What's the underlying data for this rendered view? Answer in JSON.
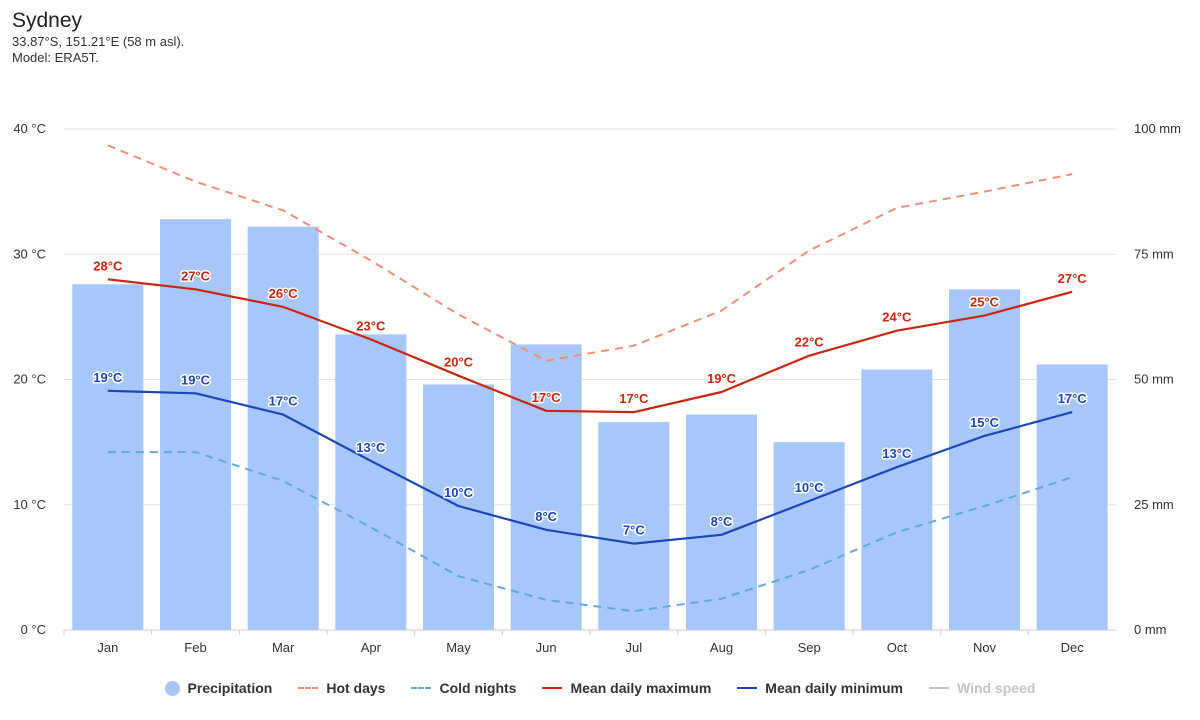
{
  "header": {
    "title": "Sydney",
    "coords": "33.87°S, 151.21°E (58 m asl).",
    "model": "Model: ERA5T."
  },
  "colors": {
    "precipitation": "#a7c6f9",
    "hot_days": "#f08e78",
    "cold_nights": "#65a7dc",
    "mean_max": "#c9260f",
    "mean_min": "#1d47b4",
    "wind_speed": "#a9a9a9",
    "grid": "#e3e3e3"
  },
  "chart_data": {
    "type": "bar+line",
    "categories": [
      "Jan",
      "Feb",
      "Mar",
      "Apr",
      "May",
      "Jun",
      "Jul",
      "Aug",
      "Sep",
      "Oct",
      "Nov",
      "Dec"
    ],
    "y_left": {
      "unit": "°C",
      "ylim": [
        0,
        40
      ],
      "ticks": [
        "0 °C",
        "10 °C",
        "20 °C",
        "30 °C",
        "40 °C"
      ]
    },
    "y_right": {
      "unit": "mm",
      "ylim": [
        0,
        100
      ],
      "ticks": [
        "0 mm",
        "25 mm",
        "50 mm",
        "75 mm",
        "100 mm"
      ]
    },
    "grid": true,
    "legend_position": "bottom-center",
    "series": [
      {
        "name": "Precipitation",
        "kind": "bar",
        "axis": "right",
        "values": [
          69,
          82,
          80.5,
          59,
          49,
          57,
          41.5,
          43,
          37.5,
          52,
          68,
          53
        ]
      },
      {
        "name": "Hot days",
        "kind": "dashed-line",
        "axis": "left",
        "values": [
          38.7,
          35.8,
          33.5,
          29.5,
          25.2,
          21.5,
          22.7,
          25.5,
          30.3,
          33.7,
          35.0,
          36.4
        ]
      },
      {
        "name": "Cold nights",
        "kind": "dashed-line",
        "axis": "left",
        "values": [
          14.2,
          14.2,
          11.9,
          8.2,
          4.3,
          2.4,
          1.5,
          2.5,
          4.8,
          7.8,
          9.9,
          12.2
        ]
      },
      {
        "name": "Mean daily maximum",
        "kind": "line",
        "axis": "left",
        "values": [
          28.0,
          27.2,
          25.8,
          23.2,
          20.3,
          17.5,
          17.4,
          19.0,
          21.9,
          23.9,
          25.1,
          27.0
        ],
        "labels": [
          "28°C",
          "27°C",
          "26°C",
          "23°C",
          "20°C",
          "17°C",
          "17°C",
          "19°C",
          "22°C",
          "24°C",
          "25°C",
          "27°C"
        ]
      },
      {
        "name": "Mean daily minimum",
        "kind": "line",
        "axis": "left",
        "values": [
          19.1,
          18.9,
          17.2,
          13.5,
          9.9,
          8.0,
          6.9,
          7.6,
          10.3,
          13.0,
          15.5,
          17.4
        ],
        "labels": [
          "19°C",
          "19°C",
          "17°C",
          "13°C",
          "10°C",
          "8°C",
          "7°C",
          "8°C",
          "10°C",
          "13°C",
          "15°C",
          "17°C"
        ]
      }
    ]
  },
  "legend": {
    "precipitation": "Precipitation",
    "hot_days": "Hot days",
    "cold_nights": "Cold nights",
    "mean_max": "Mean daily maximum",
    "mean_min": "Mean daily minimum",
    "wind_speed": "Wind speed"
  }
}
